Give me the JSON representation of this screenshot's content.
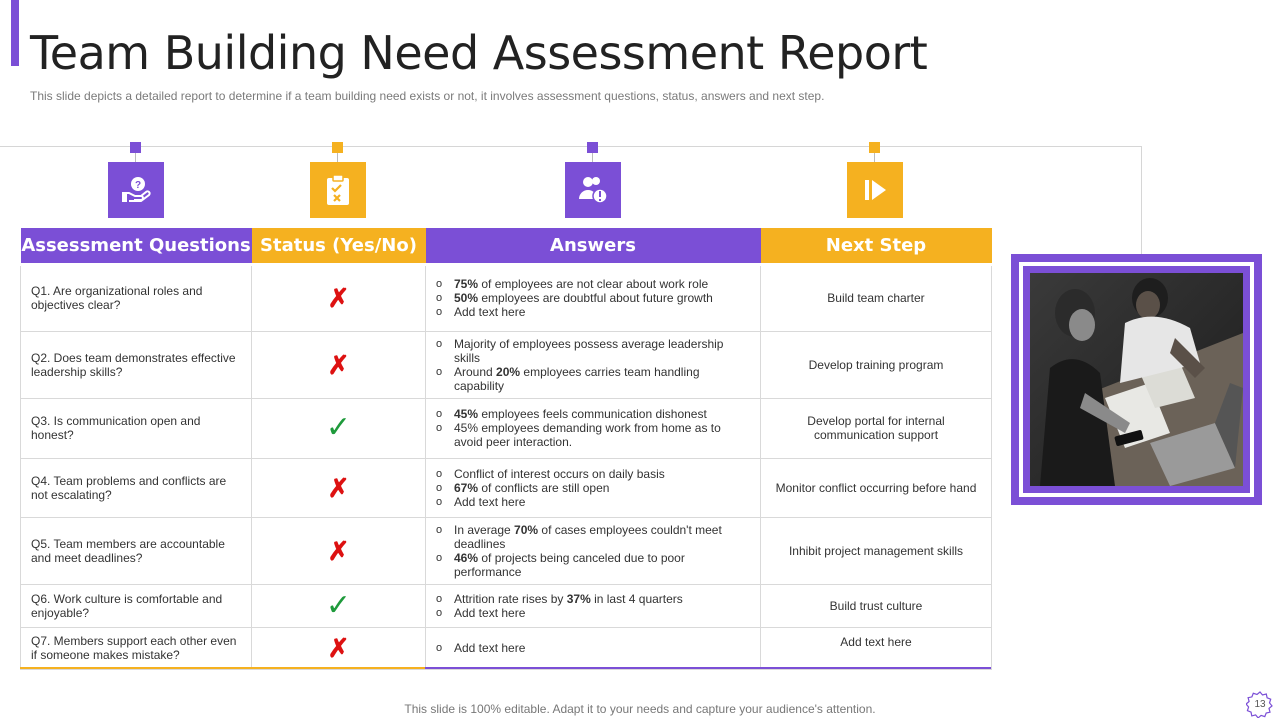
{
  "header": {
    "title": "Team Building Need Assessment Report",
    "subtitle": "This slide depicts a detailed report  to determine  if a team building need exists or not, it involves  assessment questions, status, answers and next step."
  },
  "colors": {
    "accent": "#7b4fd6",
    "highlight": "#f5b120",
    "cross": "#dd1111",
    "tick": "#1e9a3b"
  },
  "icons": [
    "question-hand-icon",
    "clipboard-check-icon",
    "people-warning-icon",
    "play-next-icon"
  ],
  "table": {
    "headers": [
      "Assessment Questions",
      "Status (Yes/No)",
      "Answers",
      "Next Step"
    ],
    "rows": [
      {
        "question": "Q1. Are organizational roles and objectives clear?",
        "status": "no",
        "answers": [
          {
            "bold": "75%",
            "text": " of employees are not clear about work role"
          },
          {
            "bold": "50%",
            "text": " employees are doubtful about future growth"
          },
          {
            "bold": "",
            "text": "Add text here"
          }
        ],
        "next_step": "Build team charter"
      },
      {
        "question": "Q2. Does team demonstrates effective leadership skills?",
        "status": "no",
        "answers": [
          {
            "pre": "",
            "bold": "",
            "text": "Majority of employees possess average leadership skills"
          },
          {
            "pre": "Around ",
            "bold": "20%",
            "text": " employees carries team handling capability"
          }
        ],
        "next_step": "Develop training program"
      },
      {
        "question": "Q3. Is communication open and honest?",
        "status": "yes",
        "answers": [
          {
            "bold": "45%",
            "text": " employees feels communication dishonest"
          },
          {
            "bold": "",
            "text": "45% employees demanding work from home as to avoid peer interaction."
          }
        ],
        "next_step": "Develop portal for internal communication support"
      },
      {
        "question": "Q4. Team problems and conflicts are not escalating?",
        "status": "no",
        "answers": [
          {
            "bold": "",
            "text": "Conflict of interest  occurs on daily basis"
          },
          {
            "bold": "67%",
            "text": " of conflicts are still open"
          },
          {
            "bold": "",
            "text": "Add text here"
          }
        ],
        "next_step": "Monitor conflict occurring before hand"
      },
      {
        "question": "Q5. Team members are accountable and meet deadlines?",
        "status": "no",
        "answers": [
          {
            "pre": "In average ",
            "bold": "70%",
            "text": " of cases employees couldn't meet deadlines"
          },
          {
            "pre": "",
            "bold": "46%",
            "text": " of projects being canceled due to poor performance"
          }
        ],
        "next_step": "Inhibit project management skills"
      },
      {
        "question": "Q6. Work culture is comfortable and enjoyable?",
        "status": "yes",
        "answers": [
          {
            "pre": "Attrition rate rises by ",
            "bold": "37%",
            "text": " in last 4 quarters"
          },
          {
            "pre": "",
            "bold": "",
            "text": "Add text here"
          }
        ],
        "next_step": "Build trust culture"
      },
      {
        "question": "Q7. Members support each other even if someone makes mistake?",
        "status": "no",
        "answers": [
          {
            "bold": "",
            "text": "Add text here"
          }
        ],
        "next_step": "Add text here"
      }
    ]
  },
  "footer": {
    "text": "This slide is 100% editable. Adapt it to your needs and capture your audience's attention.",
    "page": "13"
  }
}
